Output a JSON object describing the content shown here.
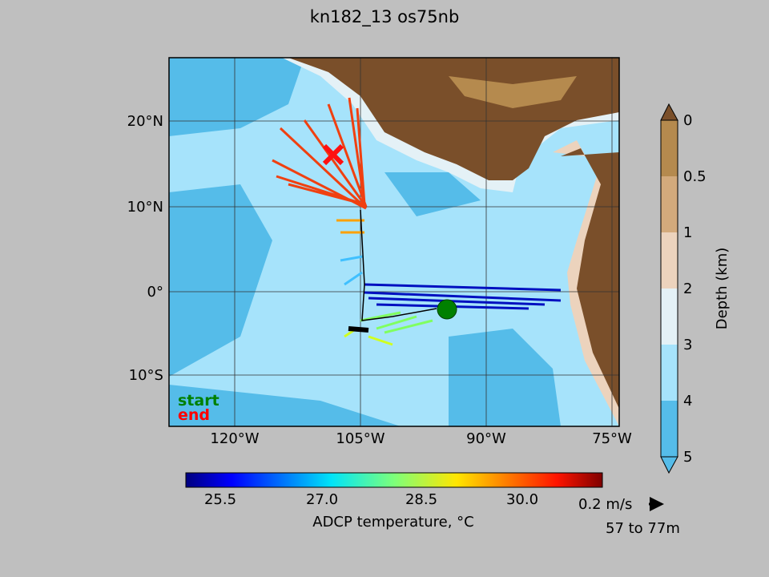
{
  "title": "kn182_13 os75nb",
  "map": {
    "lon_labels": [
      "120°W",
      "105°W",
      "90°W",
      "75°W"
    ],
    "lat_labels": [
      "20°N",
      "10°N",
      "0°",
      "10°S"
    ],
    "legend": {
      "start": "start",
      "end": "end"
    }
  },
  "depth_colorbar": {
    "labels": [
      "0",
      "0.5",
      "1",
      "2",
      "3",
      "4",
      "5"
    ],
    "title": "Depth (km)"
  },
  "temperature_colorbar": {
    "labels": [
      "25.5",
      "27.0",
      "28.5",
      "30.0"
    ],
    "title": "ADCP temperature, °C"
  },
  "scale_key": {
    "label": "0.2 m/s",
    "depth_range": "57 to 77m"
  }
}
